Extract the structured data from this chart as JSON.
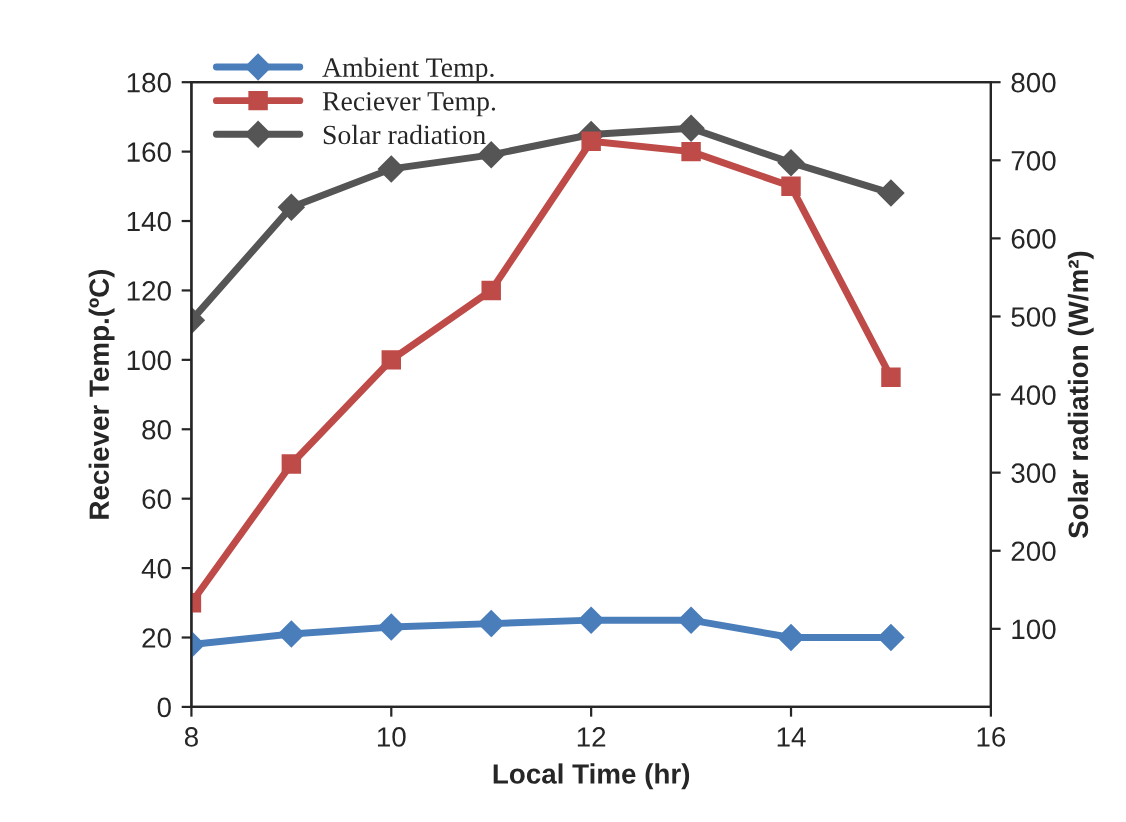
{
  "chart_data": {
    "type": "line",
    "xlabel": "Local Time (hr)",
    "ylabel": "Reciever Temp.(ºC)",
    "y2label": "Solar radiation (W/m²)",
    "x": [
      8,
      9,
      10,
      11,
      12,
      13,
      14,
      15
    ],
    "series": [
      {
        "name": "Ambient Temp.",
        "color": "#4a7ebb",
        "marker": "diamond",
        "values": [
          18,
          21,
          23,
          24,
          25,
          25,
          20,
          20
        ]
      },
      {
        "name": "Reciever Temp.",
        "color": "#be4b48",
        "marker": "square",
        "values": [
          30,
          70,
          100,
          120,
          163,
          160,
          150,
          95
        ]
      },
      {
        "name": "Solar radiation",
        "color": "#555555",
        "marker": "diamond",
        "axis": "y2",
        "values": [
          495,
          640,
          689,
          707,
          733,
          741,
          697,
          658
        ]
      }
    ],
    "xlim": [
      8,
      16
    ],
    "xticks": [
      8,
      10,
      12,
      14,
      16
    ],
    "ylim": [
      0,
      180
    ],
    "yticks": [
      0,
      20,
      40,
      60,
      80,
      100,
      120,
      140,
      160,
      180
    ],
    "y2lim": [
      0,
      800
    ],
    "y2ticks": [
      100,
      200,
      300,
      400,
      500,
      600,
      700,
      800
    ],
    "legend": "top left",
    "grid": false,
    "line_style": "solid"
  }
}
